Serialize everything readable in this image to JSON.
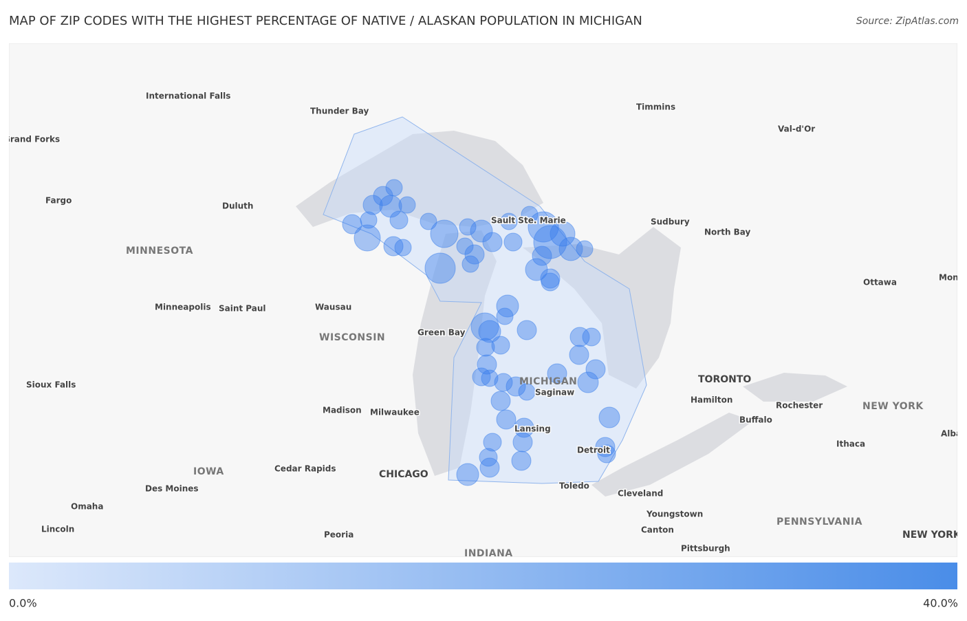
{
  "title": "MAP OF ZIP CODES WITH THE HIGHEST PERCENTAGE OF NATIVE / ALASKAN POPULATION IN MICHIGAN",
  "source": "Source: ZipAtlas.com",
  "legend": {
    "min_label": "0.0%",
    "max_label": "40.0%"
  },
  "places": [
    {
      "label": "International Falls",
      "kind": "city"
    },
    {
      "label": "Thunder Bay",
      "kind": "city"
    },
    {
      "label": "Grand Forks",
      "kind": "city"
    },
    {
      "label": "Fargo",
      "kind": "city"
    },
    {
      "label": "Duluth",
      "kind": "city"
    },
    {
      "label": "MINNESOTA",
      "kind": "state"
    },
    {
      "label": "Minneapolis",
      "kind": "city"
    },
    {
      "label": "Saint Paul",
      "kind": "city"
    },
    {
      "label": "Wausau",
      "kind": "city"
    },
    {
      "label": "WISCONSIN",
      "kind": "state"
    },
    {
      "label": "Green Bay",
      "kind": "city"
    },
    {
      "label": "Sioux Falls",
      "kind": "city"
    },
    {
      "label": "Madison",
      "kind": "city"
    },
    {
      "label": "Milwaukee",
      "kind": "city"
    },
    {
      "label": "IOWA",
      "kind": "state"
    },
    {
      "label": "Cedar Rapids",
      "kind": "city"
    },
    {
      "label": "CHICAGO",
      "kind": "big"
    },
    {
      "label": "Des Moines",
      "kind": "city"
    },
    {
      "label": "Omaha",
      "kind": "city"
    },
    {
      "label": "Lincoln",
      "kind": "city"
    },
    {
      "label": "Peoria",
      "kind": "city"
    },
    {
      "label": "INDIANA",
      "kind": "state"
    },
    {
      "label": "Timmins",
      "kind": "city"
    },
    {
      "label": "Val-d'Or",
      "kind": "city"
    },
    {
      "label": "Sudbury",
      "kind": "city"
    },
    {
      "label": "North Bay",
      "kind": "city"
    },
    {
      "label": "Ottawa",
      "kind": "city"
    },
    {
      "label": "Montreal",
      "kind": "city"
    },
    {
      "label": "Sault Ste. Marie",
      "kind": "city"
    },
    {
      "label": "MICHIGAN",
      "kind": "state"
    },
    {
      "label": "Saginaw",
      "kind": "city"
    },
    {
      "label": "Lansing",
      "kind": "city"
    },
    {
      "label": "Detroit",
      "kind": "city"
    },
    {
      "label": "Toledo",
      "kind": "city"
    },
    {
      "label": "Cleveland",
      "kind": "city"
    },
    {
      "label": "Youngstown",
      "kind": "city"
    },
    {
      "label": "Canton",
      "kind": "city"
    },
    {
      "label": "Pittsburgh",
      "kind": "city"
    },
    {
      "label": "TORONTO",
      "kind": "big"
    },
    {
      "label": "Hamilton",
      "kind": "city"
    },
    {
      "label": "Rochester",
      "kind": "city"
    },
    {
      "label": "Buffalo",
      "kind": "city"
    },
    {
      "label": "NEW YORK",
      "kind": "state"
    },
    {
      "label": "Ithaca",
      "kind": "city"
    },
    {
      "label": "Albany",
      "kind": "city"
    },
    {
      "label": "PENNSYLVANIA",
      "kind": "state"
    },
    {
      "label": "NEW YORK",
      "kind": "big"
    }
  ]
}
